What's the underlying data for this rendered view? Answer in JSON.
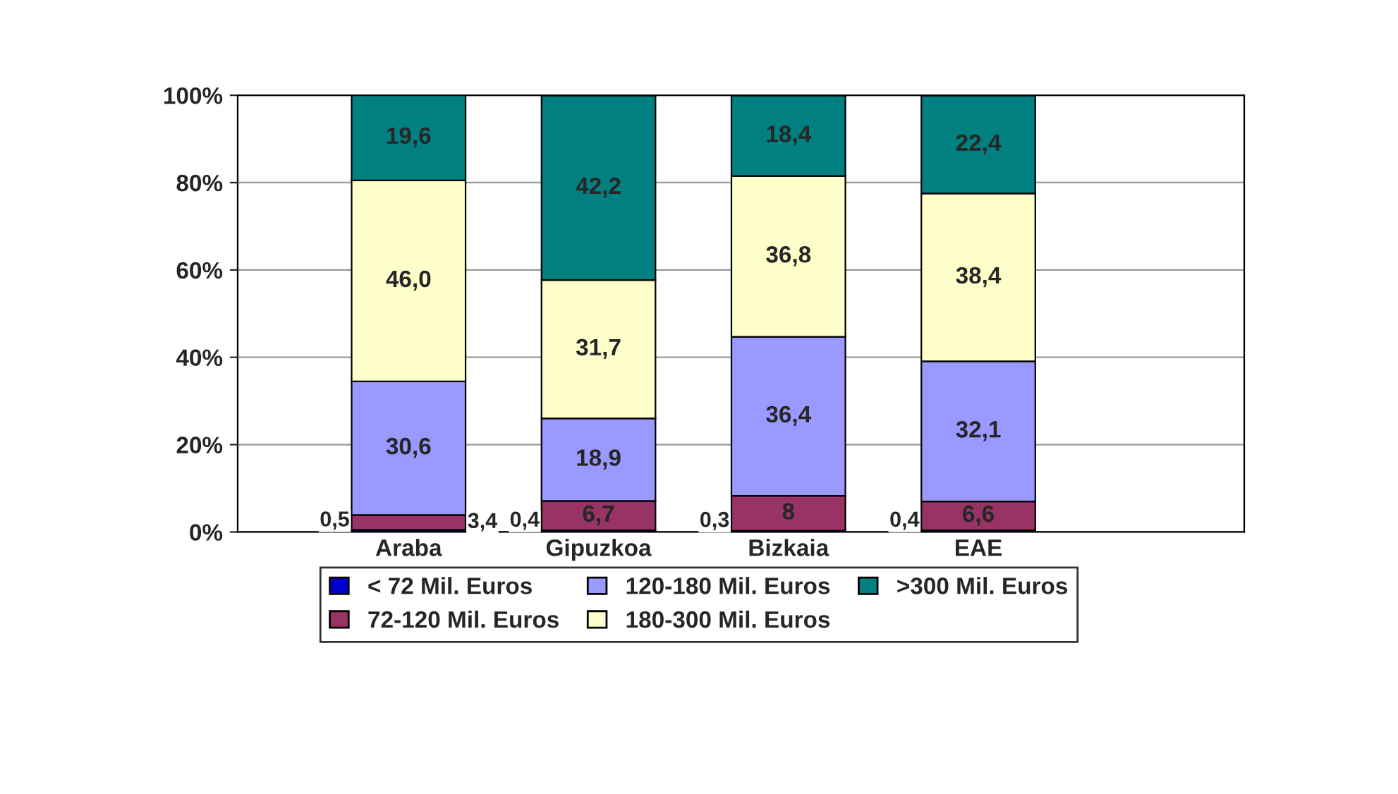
{
  "chart_data": {
    "type": "bar",
    "stacked": true,
    "categories": [
      "Araba",
      "Gipuzkoa",
      "Bizkaia",
      "EAE"
    ],
    "series": [
      {
        "name": "< 72 Mil. Euros",
        "color": "#0000cc",
        "values": [
          0.5,
          0.4,
          0.3,
          0.4
        ],
        "value_labels": [
          "0,5",
          "0,4",
          "0,3",
          "0,4"
        ]
      },
      {
        "name": "72-120 Mil. Euros",
        "color": "#993366",
        "values": [
          3.4,
          6.7,
          8,
          6.6
        ],
        "value_labels": [
          "3,4",
          "6,7",
          "8",
          "6,6"
        ]
      },
      {
        "name": "120-180 Mil. Euros",
        "color": "#9999ff",
        "values": [
          30.6,
          18.9,
          36.4,
          32.1
        ],
        "value_labels": [
          "30,6",
          "18,9",
          "36,4",
          "32,1"
        ]
      },
      {
        "name": "180-300 Mil. Euros",
        "color": "#ffffcc",
        "values": [
          46.0,
          31.7,
          36.8,
          38.4
        ],
        "value_labels": [
          "46,0",
          "31,7",
          "36,8",
          "38,4"
        ]
      },
      {
        "name": ">300 Mil. Euros",
        "color": "#008080",
        "values": [
          19.6,
          42.2,
          18.4,
          22.4
        ],
        "value_labels": [
          "19,6",
          "42,2",
          "18,4",
          "22,4"
        ]
      }
    ],
    "ylim": [
      0,
      100
    ],
    "yticks": [
      {
        "value": 0,
        "label": "0%"
      },
      {
        "value": 20,
        "label": "20%"
      },
      {
        "value": 40,
        "label": "40%"
      },
      {
        "value": 60,
        "label": "60%"
      },
      {
        "value": 80,
        "label": "80%"
      },
      {
        "value": 100,
        "label": "100%"
      }
    ],
    "grid": "y",
    "legend": "bottom"
  }
}
